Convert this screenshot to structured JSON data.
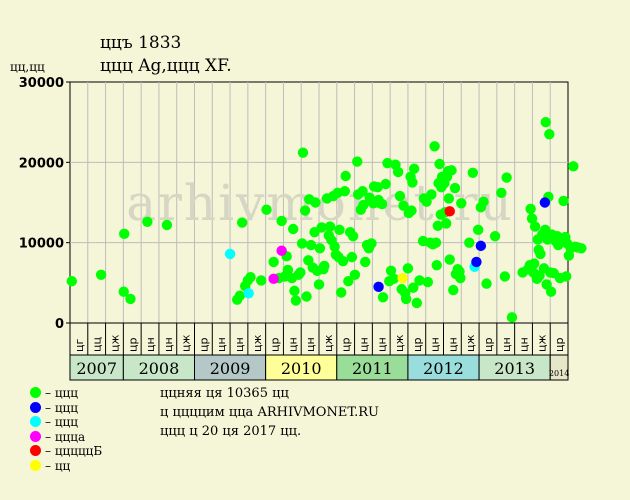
{
  "header": {
    "title": "ццъ 1833",
    "subtitle": "ццц Ag,ццц XF.",
    "y_unit": "цц,цц"
  },
  "watermark": "arhivmonet.ru",
  "legend": [
    {
      "label": "– ццц",
      "color": "#00ff00"
    },
    {
      "label": "– ццц",
      "color": "#0000ff"
    },
    {
      "label": "– ццц",
      "color": "#00ffff"
    },
    {
      "label": "– ццца",
      "color": "#ff00ff"
    },
    {
      "label": "– цццццБ",
      "color": "#ff0000"
    },
    {
      "label": "– цц",
      "color": "#ffff00"
    }
  ],
  "info": {
    "line1": "ццняя ця 10365 цц",
    "line2": "ц ццццим цца ARHIVMONET.RU",
    "line3": "ццц ц 20 ця 2017 цц."
  },
  "chart_data": {
    "type": "scatter",
    "ylim": [
      0,
      30000
    ],
    "y_ticks": [
      "0",
      "10000",
      "20000",
      "30000"
    ],
    "grid": true,
    "x_axis": {
      "halfyears": [
        {
          "label": "цг",
          "year": "2007"
        },
        {
          "label": "цц",
          "year": "2007"
        },
        {
          "label": "цж",
          "year": "2007"
        },
        {
          "label": "цр",
          "year": "2008"
        },
        {
          "label": "цн",
          "year": "2008"
        },
        {
          "label": "цн",
          "year": "2008"
        },
        {
          "label": "цж",
          "year": "2008"
        },
        {
          "label": "цр",
          "year": "2009"
        },
        {
          "label": "цн",
          "year": "2009"
        },
        {
          "label": "цн",
          "year": "2009"
        },
        {
          "label": "цж",
          "year": "2009"
        },
        {
          "label": "цр",
          "year": "2010"
        },
        {
          "label": "цн",
          "year": "2010"
        },
        {
          "label": "цн",
          "year": "2010"
        },
        {
          "label": "цж",
          "year": "2010"
        },
        {
          "label": "цр",
          "year": "2011"
        },
        {
          "label": "цн",
          "year": "2011"
        },
        {
          "label": "цн",
          "year": "2011"
        },
        {
          "label": "цж",
          "year": "2011"
        },
        {
          "label": "цр",
          "year": "2012"
        },
        {
          "label": "цн",
          "year": "2012"
        },
        {
          "label": "цн",
          "year": "2012"
        },
        {
          "label": "цж",
          "year": "2012"
        },
        {
          "label": "цр",
          "year": "2013"
        },
        {
          "label": "цн",
          "year": "2013"
        },
        {
          "label": "цн",
          "year": "2013"
        },
        {
          "label": "цж",
          "year": "2013"
        },
        {
          "label": "цр",
          "year": "2014"
        }
      ],
      "years": [
        {
          "label": "2007",
          "color": "#c8e6c8"
        },
        {
          "label": "2008",
          "color": "#c8e6c8"
        },
        {
          "label": "2009",
          "color": "#b4c8c8"
        },
        {
          "label": "2010",
          "color": "#ffff99"
        },
        {
          "label": "2011",
          "color": "#99dd99"
        },
        {
          "label": "2012",
          "color": "#99dddd"
        },
        {
          "label": "2013",
          "color": "#c8e6c8"
        },
        {
          "label": "2014",
          "color": "#e6e6c8"
        }
      ]
    },
    "series": [
      {
        "color": "#00ff00",
        "points": [
          [
            0.1,
            5200
          ],
          [
            1.75,
            6000
          ],
          [
            3.05,
            11100
          ],
          [
            3.02,
            3900
          ],
          [
            3.4,
            3000
          ],
          [
            4.35,
            12600
          ],
          [
            5.45,
            12200
          ],
          [
            9.4,
            2900
          ],
          [
            9.55,
            3400
          ],
          [
            9.68,
            12500
          ],
          [
            9.85,
            4600
          ],
          [
            10.0,
            5300
          ],
          [
            10.15,
            5700
          ],
          [
            10.75,
            5300
          ],
          [
            11.05,
            14100
          ],
          [
            11.45,
            7600
          ],
          [
            11.75,
            5600
          ],
          [
            11.9,
            12700
          ],
          [
            12.08,
            5800
          ],
          [
            12.18,
            8300
          ],
          [
            12.25,
            6600
          ],
          [
            12.48,
            5600
          ],
          [
            12.55,
            11700
          ],
          [
            12.62,
            4000
          ],
          [
            12.7,
            2800
          ],
          [
            12.85,
            6000
          ],
          [
            12.95,
            6300
          ],
          [
            13.05,
            9900
          ],
          [
            13.1,
            21200
          ],
          [
            13.22,
            14000
          ],
          [
            13.3,
            3300
          ],
          [
            13.4,
            7800
          ],
          [
            13.45,
            15400
          ],
          [
            13.55,
            9700
          ],
          [
            13.65,
            6900
          ],
          [
            13.75,
            11300
          ],
          [
            13.8,
            15000
          ],
          [
            13.9,
            6500
          ],
          [
            14.0,
            4800
          ],
          [
            14.05,
            9300
          ],
          [
            14.15,
            11900
          ],
          [
            14.25,
            6700
          ],
          [
            14.3,
            7100
          ],
          [
            14.45,
            15500
          ],
          [
            14.55,
            10900
          ],
          [
            14.62,
            12000
          ],
          [
            14.7,
            10300
          ],
          [
            14.8,
            15800
          ],
          [
            14.88,
            9500
          ],
          [
            14.95,
            8500
          ],
          [
            15.05,
            16200
          ],
          [
            15.1,
            8200
          ],
          [
            15.15,
            11600
          ],
          [
            15.25,
            3800
          ],
          [
            15.35,
            7700
          ],
          [
            15.45,
            16400
          ],
          [
            15.5,
            18300
          ],
          [
            15.65,
            5200
          ],
          [
            15.75,
            11300
          ],
          [
            15.85,
            8200
          ],
          [
            15.92,
            10800
          ],
          [
            16.02,
            6000
          ],
          [
            16.15,
            20100
          ],
          [
            16.2,
            16000
          ],
          [
            16.35,
            14100
          ],
          [
            16.45,
            16400
          ],
          [
            16.5,
            14700
          ],
          [
            16.6,
            7600
          ],
          [
            16.7,
            9700
          ],
          [
            16.8,
            9300
          ],
          [
            16.85,
            15600
          ],
          [
            16.95,
            9900
          ],
          [
            17.05,
            14900
          ],
          [
            17.1,
            17000
          ],
          [
            17.2,
            15000
          ],
          [
            17.3,
            16900
          ],
          [
            17.35,
            15300
          ],
          [
            17.45,
            14900
          ],
          [
            17.55,
            14800
          ],
          [
            17.6,
            3200
          ],
          [
            17.75,
            17300
          ],
          [
            17.85,
            19900
          ],
          [
            17.95,
            5200
          ],
          [
            18.05,
            6500
          ],
          [
            18.2,
            5500
          ],
          [
            18.3,
            19700
          ],
          [
            18.45,
            18800
          ],
          [
            18.55,
            15800
          ],
          [
            18.65,
            4200
          ],
          [
            18.75,
            14600
          ],
          [
            18.85,
            3700
          ],
          [
            18.9,
            3000
          ],
          [
            19.0,
            6800
          ],
          [
            19.05,
            13700
          ],
          [
            19.15,
            18200
          ],
          [
            19.2,
            14000
          ],
          [
            19.25,
            17500
          ],
          [
            19.3,
            4400
          ],
          [
            19.35,
            19200
          ],
          [
            19.5,
            2500
          ],
          [
            19.65,
            5300
          ],
          [
            19.85,
            10200
          ],
          [
            19.9,
            15500
          ],
          [
            20.05,
            15100
          ],
          [
            20.12,
            5100
          ],
          [
            20.25,
            10000
          ],
          [
            20.32,
            16000
          ],
          [
            20.4,
            9800
          ],
          [
            20.5,
            22000
          ],
          [
            20.58,
            10000
          ],
          [
            20.62,
            7200
          ],
          [
            20.68,
            12100
          ],
          [
            20.72,
            17400
          ],
          [
            20.78,
            19800
          ],
          [
            20.85,
            13500
          ],
          [
            20.88,
            16900
          ],
          [
            20.92,
            18200
          ],
          [
            21.0,
            18100
          ],
          [
            21.05,
            17400
          ],
          [
            21.1,
            13800
          ],
          [
            21.15,
            12400
          ],
          [
            21.2,
            18200
          ],
          [
            21.25,
            18900
          ],
          [
            21.3,
            15500
          ],
          [
            21.35,
            7900
          ],
          [
            21.45,
            19000
          ],
          [
            21.55,
            4100
          ],
          [
            21.65,
            16800
          ],
          [
            21.7,
            6100
          ],
          [
            21.8,
            6700
          ],
          [
            21.9,
            6400
          ],
          [
            21.95,
            5600
          ],
          [
            22.0,
            14900
          ],
          [
            22.45,
            10000
          ],
          [
            22.65,
            18700
          ],
          [
            22.95,
            11600
          ],
          [
            23.1,
            14400
          ],
          [
            23.25,
            15100
          ],
          [
            23.42,
            4900
          ],
          [
            23.9,
            10800
          ],
          [
            24.25,
            16200
          ],
          [
            24.45,
            5800
          ],
          [
            24.55,
            18100
          ],
          [
            24.85,
            700
          ],
          [
            25.45,
            6300
          ],
          [
            25.75,
            6700
          ],
          [
            25.85,
            7200
          ],
          [
            25.9,
            14200
          ],
          [
            25.98,
            13000
          ],
          [
            26.05,
            6300
          ],
          [
            26.1,
            7400
          ],
          [
            26.15,
            12000
          ],
          [
            26.25,
            5500
          ],
          [
            26.3,
            10400
          ],
          [
            26.35,
            9100
          ],
          [
            26.45,
            8600
          ],
          [
            26.55,
            11000
          ],
          [
            26.65,
            6800
          ],
          [
            26.72,
            11600
          ],
          [
            26.8,
            4800
          ],
          [
            26.85,
            10400
          ],
          [
            26.9,
            15700
          ],
          [
            26.95,
            23500
          ],
          [
            27.0,
            6300
          ],
          [
            27.05,
            3900
          ],
          [
            27.1,
            11000
          ],
          [
            27.2,
            6200
          ],
          [
            27.3,
            10200
          ],
          [
            27.4,
            10800
          ],
          [
            27.45,
            9700
          ],
          [
            27.55,
            5600
          ],
          [
            27.65,
            10200
          ],
          [
            27.75,
            15200
          ],
          [
            27.85,
            10700
          ],
          [
            27.9,
            5800
          ],
          [
            27.95,
            9900
          ],
          [
            28.05,
            8400
          ],
          [
            28.15,
            9300
          ],
          [
            28.3,
            19500
          ],
          [
            28.4,
            9500
          ],
          [
            28.55,
            9400
          ],
          [
            28.75,
            9300
          ],
          [
            26.75,
            25000
          ],
          [
            26.4,
            5900
          ]
        ]
      },
      {
        "color": "#00ffff",
        "points": [
          [
            9.0,
            8600
          ],
          [
            10.05,
            3700
          ],
          [
            22.75,
            7000
          ]
        ]
      },
      {
        "color": "#ff00ff",
        "points": [
          [
            11.9,
            9000
          ],
          [
            11.45,
            5500
          ]
        ]
      },
      {
        "color": "#0000ff",
        "points": [
          [
            17.35,
            4500
          ],
          [
            22.85,
            7600
          ],
          [
            23.1,
            9600
          ],
          [
            26.7,
            15000
          ]
        ]
      },
      {
        "color": "#ff0000",
        "points": [
          [
            21.35,
            13900
          ]
        ]
      },
      {
        "color": "#ffff00",
        "points": [
          [
            18.7,
            5600
          ]
        ]
      }
    ]
  }
}
